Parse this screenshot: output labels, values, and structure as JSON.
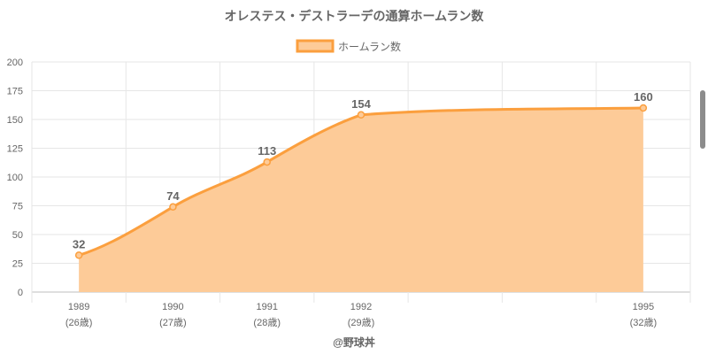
{
  "chart_data": {
    "type": "area",
    "title": "オレステス・デストラーデの通算ホームラン数",
    "series": [
      {
        "name": "ホームラン数",
        "x": [
          1989,
          1990,
          1991,
          1992,
          1995
        ],
        "values": [
          32,
          74,
          113,
          154,
          160
        ]
      }
    ],
    "x_tick_labels": [
      "1989",
      "1990",
      "1991",
      "1992",
      "1995"
    ],
    "age_labels": [
      "(26歳)",
      "(27歳)",
      "(28歳)",
      "(29歳)",
      "(32歳)"
    ],
    "ylim": [
      0,
      200
    ],
    "y_ticks": [
      0,
      25,
      50,
      75,
      100,
      125,
      150,
      175,
      200
    ],
    "xlim": [
      1988.5,
      1995.5
    ],
    "legend_position": "top",
    "grid": true,
    "data_labels": true,
    "colors": {
      "line": "#fb9f3e",
      "fill": "#fdcb98",
      "grid": "#e6e6e6",
      "text": "#666666"
    }
  },
  "credit": "@野球丼"
}
